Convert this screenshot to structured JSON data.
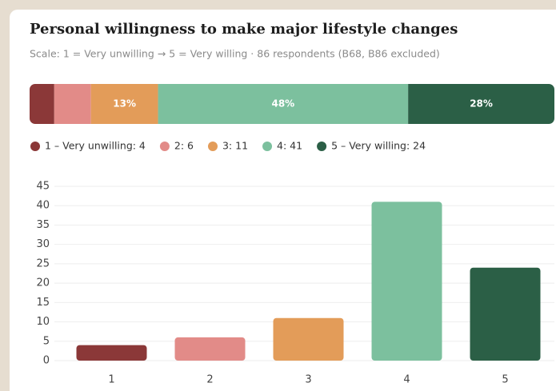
{
  "chart_data": [
    {
      "type": "stacked_bar",
      "title": "Personal willingness to make major lifestyle changes",
      "subtitle": "Scale: 1 = Very unwilling → 5 = Very willing · 86 respondents (B68, B86 excluded)",
      "categories": [
        "1 – Very unwilling",
        "2",
        "3",
        "4",
        "5 – Very willing"
      ],
      "values": [
        4.7,
        7.0,
        12.8,
        47.7,
        27.9
      ],
      "value_labels": [
        null,
        null,
        "13%",
        "48%",
        "28%"
      ],
      "legend": [
        "1 – Very unwilling: 4",
        "2: 6",
        "3: 11",
        "4: 41",
        "5 – Very willing: 24"
      ],
      "colors": [
        "#8b3838",
        "#e28b88",
        "#e39c59",
        "#7cc09e",
        "#2b5f46"
      ]
    },
    {
      "type": "bar",
      "categories": [
        "1",
        "2",
        "3",
        "4",
        "5"
      ],
      "values": [
        4,
        6,
        11,
        41,
        24
      ],
      "colors": [
        "#8b3838",
        "#e28b88",
        "#e39c59",
        "#7cc09e",
        "#2b5f46"
      ],
      "ylim": [
        0,
        45
      ],
      "yticks": [
        0,
        5,
        10,
        15,
        20,
        25,
        30,
        35,
        40,
        45
      ],
      "grid": true
    }
  ]
}
